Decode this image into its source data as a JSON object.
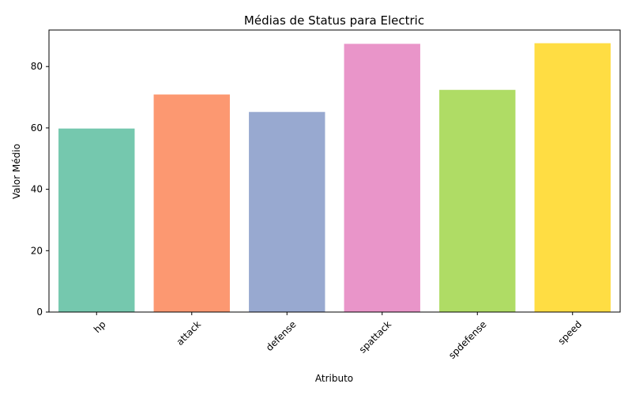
{
  "chart_data": {
    "type": "bar",
    "title": "Médias de Status para Electric",
    "xlabel": "Atributo",
    "ylabel": "Valor Médio",
    "categories": [
      "hp",
      "attack",
      "defense",
      "spattack",
      "spdefense",
      "speed"
    ],
    "values": [
      59.8,
      70.9,
      65.2,
      87.4,
      72.4,
      87.6
    ],
    "colors": [
      "#66c2a5",
      "#fc8d62",
      "#8da0cb",
      "#e78ac3",
      "#a6d854",
      "#ffd92f"
    ],
    "bar_alpha": 0.9,
    "ylim": [
      0,
      91.9
    ],
    "yticks": [
      0,
      20,
      40,
      60,
      80
    ],
    "xtick_rotation": 45,
    "grid": false,
    "legend": "none"
  }
}
